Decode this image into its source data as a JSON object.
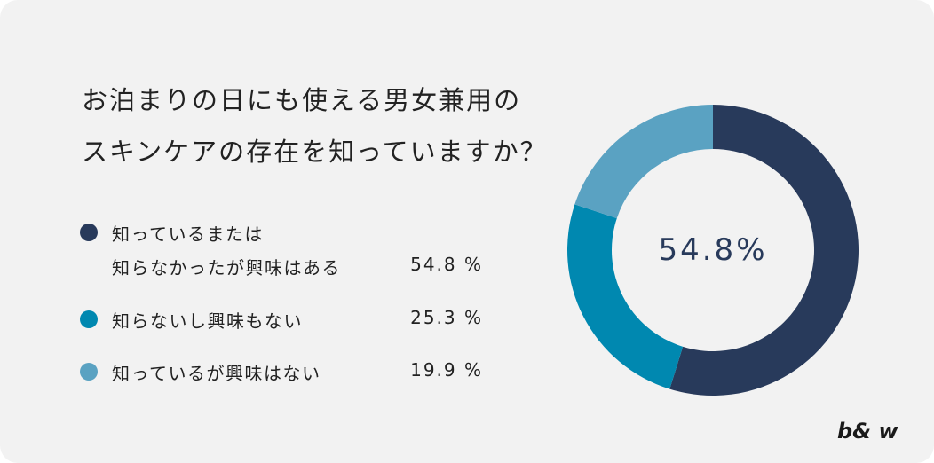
{
  "title": {
    "line1": "お泊まりの日にも使える男女兼用の",
    "line2": "スキンケアの存在を知っていますか？"
  },
  "legend": [
    {
      "label_line1": "知っているまたは",
      "label_line2": "知らなかったが興味はある",
      "value_text": "54.8 %",
      "color": "#283a5b"
    },
    {
      "label_line1": "知らないし興味もない",
      "value_text": "25.3 %",
      "color": "#0088b0"
    },
    {
      "label_line1": "知っているが興味はない",
      "value_text": "19.9 %",
      "color": "#5aa2c2"
    }
  ],
  "center_label": "54.8%",
  "brand": "b& w",
  "chart_data": {
    "type": "pie",
    "subtype": "donut",
    "title": "お泊まりの日にも使える男女兼用のスキンケアの存在を知っていますか？",
    "categories": [
      "知っているまたは知らなかったが興味はある",
      "知らないし興味もない",
      "知っているが興味はない"
    ],
    "values": [
      54.8,
      25.3,
      19.9
    ],
    "unit": "%",
    "colors": [
      "#283a5b",
      "#0088b0",
      "#5aa2c2"
    ],
    "start_angle": "12 o'clock, clockwise",
    "center_annotation": "54.8%",
    "legend_position": "left"
  }
}
